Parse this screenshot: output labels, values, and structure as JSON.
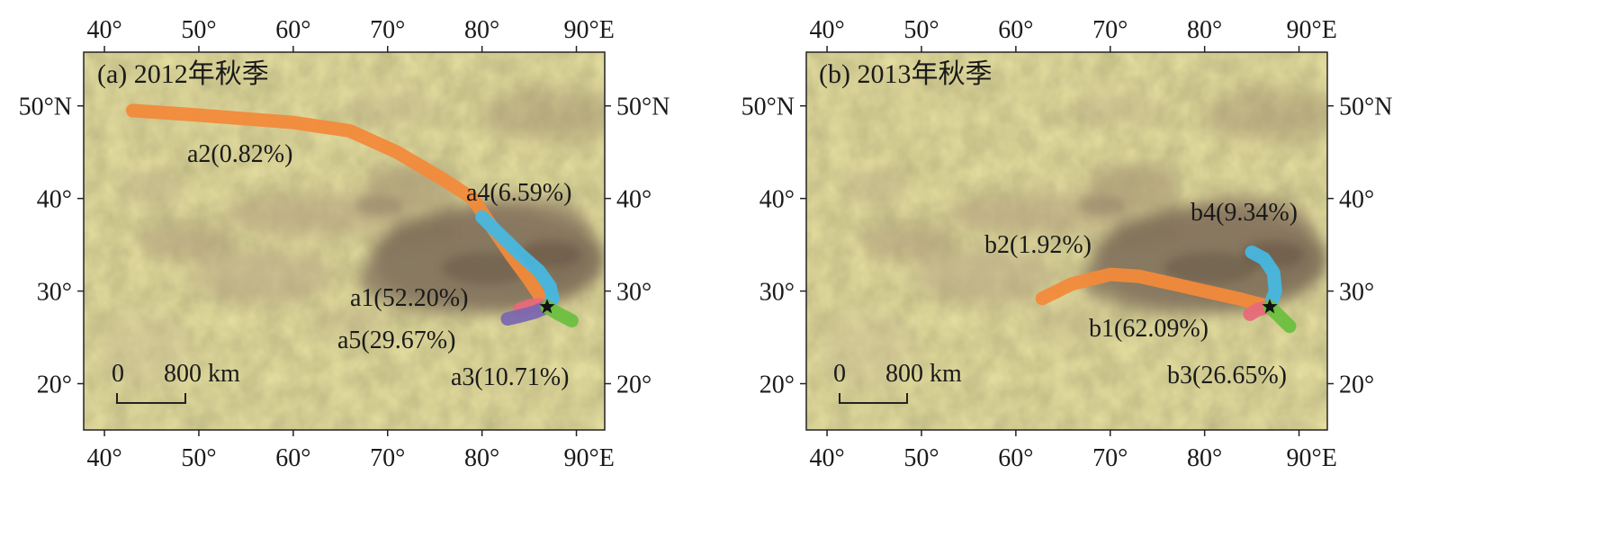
{
  "longitude_ticks": [
    "40°",
    "50°",
    "60°",
    "70°",
    "80°",
    "90°E"
  ],
  "latitude_ticks": [
    "50°N",
    "40°",
    "30°",
    "20°"
  ],
  "colors": {
    "a1": "#e8697a",
    "a2": "#f28a3a",
    "a3": "#6cbf3f",
    "a4": "#47b7e0",
    "a5": "#7b68b0",
    "b1": "#e8697a",
    "b2": "#f28a3a",
    "b3": "#6cbf3f",
    "b4": "#47b7e0",
    "terrain_base": "#e9e2a2",
    "terrain_dark": "#7a6a55"
  },
  "icons": {
    "station": "star-icon"
  },
  "panels": [
    {
      "title": "(a) 2012年秋季",
      "scale": {
        "start": "0",
        "end": "800 km"
      },
      "trajectories": [
        {
          "id": "a2",
          "label": "a2(0.82%)",
          "points": [
            [
              43,
              49.5
            ],
            [
              50,
              49
            ],
            [
              60,
              48.2
            ],
            [
              66,
              47.3
            ],
            [
              71,
              45
            ],
            [
              76,
              42
            ],
            [
              79,
              40
            ],
            [
              81,
              37
            ],
            [
              83,
              34
            ],
            [
              85,
              31.2
            ],
            [
              86.9,
              28.3
            ]
          ]
        },
        {
          "id": "a4",
          "label": "a4(6.59%)",
          "points": [
            [
              80,
              38
            ],
            [
              82,
              36
            ],
            [
              84,
              34
            ],
            [
              86,
              32.2
            ],
            [
              87.2,
              30.5
            ],
            [
              87.5,
              29.2
            ],
            [
              86.9,
              28.3
            ]
          ]
        },
        {
          "id": "a1",
          "label": "a1(52.20%)",
          "points": [
            [
              84,
              28
            ],
            [
              85,
              28.4
            ],
            [
              86,
              28.5
            ],
            [
              86.9,
              28.3
            ]
          ]
        },
        {
          "id": "a5",
          "label": "a5(29.67%)",
          "points": [
            [
              82.7,
              27
            ],
            [
              84,
              27.3
            ],
            [
              85.5,
              27.7
            ],
            [
              86.9,
              28.3
            ]
          ]
        },
        {
          "id": "a3",
          "label": "a3(10.71%)",
          "points": [
            [
              86.9,
              28.3
            ],
            [
              88,
              27.6
            ],
            [
              89.5,
              26.8
            ]
          ]
        }
      ]
    },
    {
      "title": "(b) 2013年秋季",
      "scale": {
        "start": "0",
        "end": "800 km"
      },
      "trajectories": [
        {
          "id": "b2",
          "label": "b2(1.92%)",
          "points": [
            [
              62.8,
              29.2
            ],
            [
              66,
              30.8
            ],
            [
              70,
              31.8
            ],
            [
              73,
              31.6
            ],
            [
              77,
              30.7
            ],
            [
              80,
              30
            ],
            [
              83.5,
              29.2
            ],
            [
              86.9,
              28.3
            ]
          ]
        },
        {
          "id": "b4",
          "label": "b4(9.34%)",
          "points": [
            [
              85,
              34.2
            ],
            [
              86.3,
              33.5
            ],
            [
              87.3,
              32
            ],
            [
              87.5,
              30
            ],
            [
              86.9,
              28.3
            ]
          ]
        },
        {
          "id": "b1",
          "label": "b1(62.09%)",
          "points": [
            [
              84.8,
              27.5
            ],
            [
              85.6,
              28
            ],
            [
              86.9,
              28.3
            ]
          ]
        },
        {
          "id": "b3",
          "label": "b3(26.65%)",
          "points": [
            [
              86.9,
              28.3
            ],
            [
              88,
              27.2
            ],
            [
              89,
              26.2
            ]
          ]
        }
      ]
    }
  ]
}
